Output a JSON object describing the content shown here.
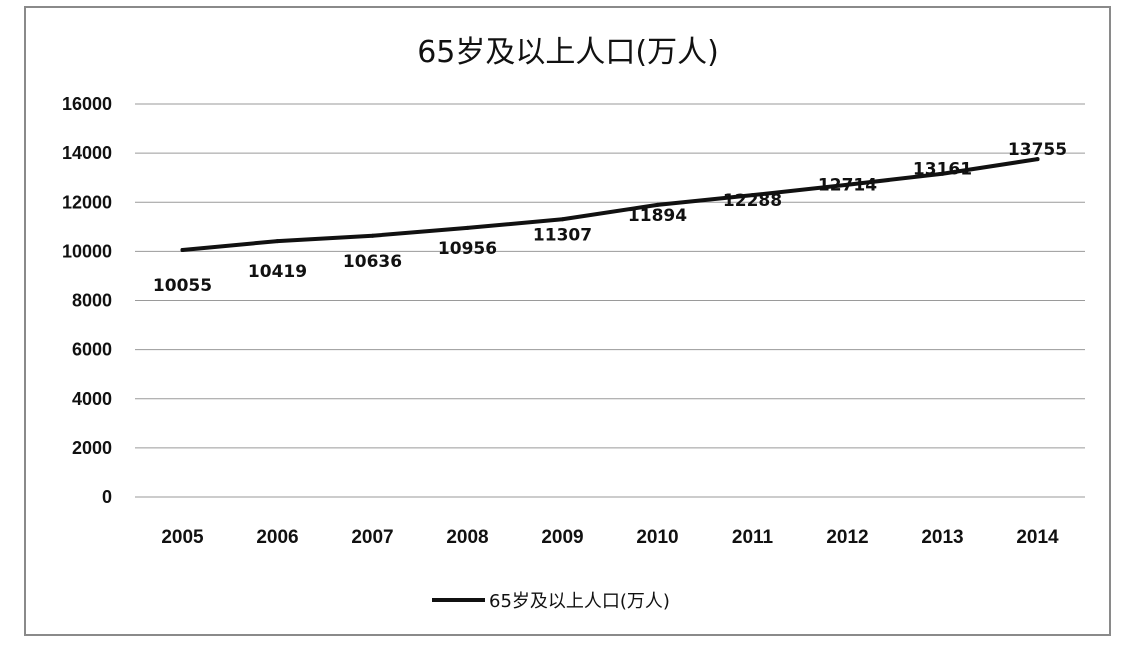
{
  "chart_data": {
    "type": "line",
    "title": "65岁及以上人口(万人)",
    "categories": [
      "2005",
      "2006",
      "2007",
      "2008",
      "2009",
      "2010",
      "2011",
      "2012",
      "2013",
      "2014"
    ],
    "series": [
      {
        "name": "65岁及以上人口(万人)",
        "values": [
          10055,
          10419,
          10636,
          10956,
          11307,
          11894,
          12288,
          12714,
          13161,
          13755
        ],
        "color": "#111111"
      }
    ],
    "yticks": [
      "0",
      "2000",
      "4000",
      "6000",
      "8000",
      "10000",
      "12000",
      "14000",
      "16000"
    ],
    "ylim": [
      0,
      16000
    ],
    "grid": true,
    "legend_position": "bottom",
    "data_labels": true
  }
}
